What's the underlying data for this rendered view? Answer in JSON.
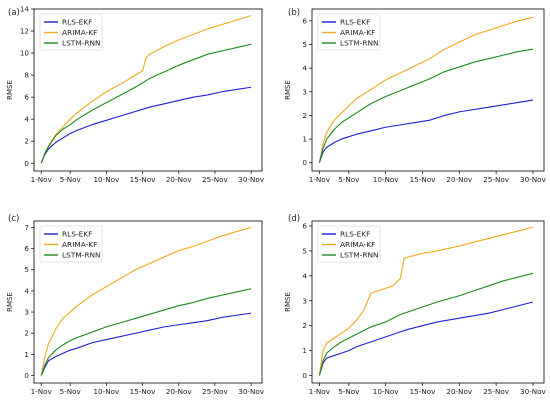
{
  "colors": {
    "RLS-EKF": "#1f1fd6",
    "ARIMA-KF": "#f2a81d",
    "LSTM-RNN": "#1e8a1e"
  },
  "chart_data": [
    {
      "type": "line",
      "panel_label": "(a)",
      "ylabel": "RMSE",
      "xlabel": "",
      "x_ticks": [
        "1-Nov",
        "5-Nov",
        "10-Nov",
        "15-Nov",
        "20-Nov",
        "25-Nov",
        "30-Nov"
      ],
      "x_tick_days": [
        1,
        5,
        10,
        15,
        20,
        25,
        30
      ],
      "xlim": [
        0,
        31.5
      ],
      "ylim": [
        -0.7,
        14
      ],
      "y_ticks": [
        0,
        2,
        4,
        6,
        8,
        10,
        12,
        14
      ],
      "legend": "upper-left",
      "grid": false,
      "x": [
        1,
        1.5,
        2,
        3,
        4,
        5,
        6,
        8,
        10,
        12,
        14,
        15,
        15.5,
        16,
        18,
        20,
        22,
        24,
        26,
        28,
        30
      ],
      "series": [
        {
          "name": "RLS-EKF",
          "values": [
            0,
            0.8,
            1.3,
            1.9,
            2.3,
            2.7,
            3.0,
            3.5,
            3.9,
            4.3,
            4.7,
            4.9,
            5.0,
            5.1,
            5.4,
            5.7,
            6.0,
            6.2,
            6.5,
            6.7,
            6.9
          ]
        },
        {
          "name": "ARIMA-KF",
          "values": [
            0,
            0.9,
            1.6,
            2.6,
            3.3,
            4.0,
            4.6,
            5.6,
            6.5,
            7.2,
            8.0,
            8.4,
            9.6,
            9.9,
            10.6,
            11.2,
            11.7,
            12.2,
            12.6,
            13.0,
            13.4
          ]
        },
        {
          "name": "LSTM-RNN",
          "values": [
            0,
            0.9,
            1.5,
            2.5,
            3.1,
            3.5,
            4.0,
            4.8,
            5.5,
            6.2,
            6.9,
            7.3,
            7.5,
            7.7,
            8.3,
            8.9,
            9.4,
            9.9,
            10.2,
            10.5,
            10.8
          ]
        }
      ]
    },
    {
      "type": "line",
      "panel_label": "(b)",
      "ylabel": "RMSE",
      "xlabel": "",
      "x_ticks": [
        "1-Nov",
        "5-Nov",
        "10-Nov",
        "15-Nov",
        "20-Nov",
        "25-Nov",
        "30-Nov"
      ],
      "x_tick_days": [
        1,
        5,
        10,
        15,
        20,
        25,
        30
      ],
      "xlim": [
        0,
        31.5
      ],
      "ylim": [
        -0.35,
        6.5
      ],
      "y_ticks": [
        0,
        1,
        2,
        3,
        4,
        5,
        6
      ],
      "legend": "upper-left",
      "grid": false,
      "x": [
        1,
        1.5,
        2,
        3,
        4,
        5,
        6,
        8,
        10,
        12,
        14,
        16,
        18,
        20,
        22,
        24,
        26,
        28,
        30
      ],
      "series": [
        {
          "name": "RLS-EKF",
          "values": [
            0,
            0.45,
            0.65,
            0.85,
            1.0,
            1.1,
            1.2,
            1.35,
            1.5,
            1.6,
            1.7,
            1.8,
            2.0,
            2.15,
            2.25,
            2.35,
            2.45,
            2.55,
            2.65
          ]
        },
        {
          "name": "ARIMA-KF",
          "values": [
            0,
            0.8,
            1.3,
            1.8,
            2.1,
            2.4,
            2.7,
            3.1,
            3.5,
            3.8,
            4.1,
            4.4,
            4.8,
            5.1,
            5.4,
            5.6,
            5.8,
            6.0,
            6.15
          ]
        },
        {
          "name": "LSTM-RNN",
          "values": [
            0,
            0.6,
            1.0,
            1.4,
            1.7,
            1.9,
            2.1,
            2.5,
            2.8,
            3.05,
            3.3,
            3.55,
            3.85,
            4.05,
            4.25,
            4.4,
            4.55,
            4.7,
            4.8
          ]
        }
      ]
    },
    {
      "type": "line",
      "panel_label": "(c)",
      "ylabel": "RMSE",
      "xlabel": "",
      "x_ticks": [
        "1-Nov",
        "5-Nov",
        "10-Nov",
        "15-Nov",
        "20-Nov",
        "25-Nov",
        "30-Nov"
      ],
      "x_tick_days": [
        1,
        5,
        10,
        15,
        20,
        25,
        30
      ],
      "xlim": [
        0,
        31.5
      ],
      "ylim": [
        -0.35,
        7.3
      ],
      "y_ticks": [
        0,
        1,
        2,
        3,
        4,
        5,
        6,
        7
      ],
      "legend": "upper-left",
      "grid": false,
      "x": [
        1,
        1.5,
        2,
        3,
        4,
        5,
        6,
        8,
        10,
        12,
        14,
        16,
        18,
        20,
        22,
        24,
        26,
        28,
        30
      ],
      "series": [
        {
          "name": "RLS-EKF",
          "values": [
            0,
            0.4,
            0.7,
            0.9,
            1.05,
            1.2,
            1.3,
            1.55,
            1.7,
            1.85,
            2.0,
            2.15,
            2.3,
            2.4,
            2.5,
            2.6,
            2.75,
            2.85,
            2.95
          ]
        },
        {
          "name": "ARIMA-KF",
          "values": [
            0,
            0.9,
            1.5,
            2.2,
            2.7,
            3.0,
            3.3,
            3.8,
            4.2,
            4.6,
            5.0,
            5.3,
            5.6,
            5.9,
            6.1,
            6.35,
            6.6,
            6.8,
            7.0
          ]
        },
        {
          "name": "LSTM-RNN",
          "values": [
            0,
            0.5,
            0.85,
            1.2,
            1.45,
            1.65,
            1.8,
            2.05,
            2.3,
            2.5,
            2.7,
            2.9,
            3.1,
            3.3,
            3.45,
            3.65,
            3.8,
            3.95,
            4.1
          ]
        }
      ]
    },
    {
      "type": "line",
      "panel_label": "(d)",
      "ylabel": "RMSE",
      "xlabel": "",
      "x_ticks": [
        "1-Nov",
        "5-Nov",
        "10-Nov",
        "15-Nov",
        "20-Nov",
        "25-Nov",
        "30-Nov"
      ],
      "x_tick_days": [
        1,
        5,
        10,
        15,
        20,
        25,
        30
      ],
      "xlim": [
        0,
        31.5
      ],
      "ylim": [
        -0.3,
        6.2
      ],
      "y_ticks": [
        0,
        1,
        2,
        3,
        4,
        5,
        6
      ],
      "legend": "upper-left",
      "grid": false,
      "x": [
        1,
        1.5,
        2,
        3,
        4,
        5,
        6,
        7,
        8,
        9,
        10,
        11,
        12,
        12.5,
        13,
        15,
        17,
        20,
        22,
        24,
        26,
        28,
        30
      ],
      "series": [
        {
          "name": "RLS-EKF",
          "values": [
            0,
            0.5,
            0.7,
            0.8,
            0.9,
            1.0,
            1.15,
            1.25,
            1.35,
            1.45,
            1.55,
            1.65,
            1.75,
            1.8,
            1.85,
            2.0,
            2.15,
            2.3,
            2.4,
            2.5,
            2.65,
            2.8,
            2.95
          ]
        },
        {
          "name": "ARIMA-KF",
          "values": [
            0,
            1.0,
            1.3,
            1.5,
            1.7,
            1.9,
            2.2,
            2.6,
            3.3,
            3.4,
            3.5,
            3.6,
            3.9,
            4.7,
            4.75,
            4.9,
            5.0,
            5.2,
            5.35,
            5.5,
            5.65,
            5.8,
            5.95
          ]
        },
        {
          "name": "LSTM-RNN",
          "values": [
            0,
            0.6,
            0.9,
            1.15,
            1.35,
            1.5,
            1.65,
            1.8,
            1.95,
            2.05,
            2.15,
            2.3,
            2.45,
            2.5,
            2.55,
            2.75,
            2.95,
            3.2,
            3.4,
            3.6,
            3.8,
            3.95,
            4.1
          ]
        }
      ]
    }
  ]
}
